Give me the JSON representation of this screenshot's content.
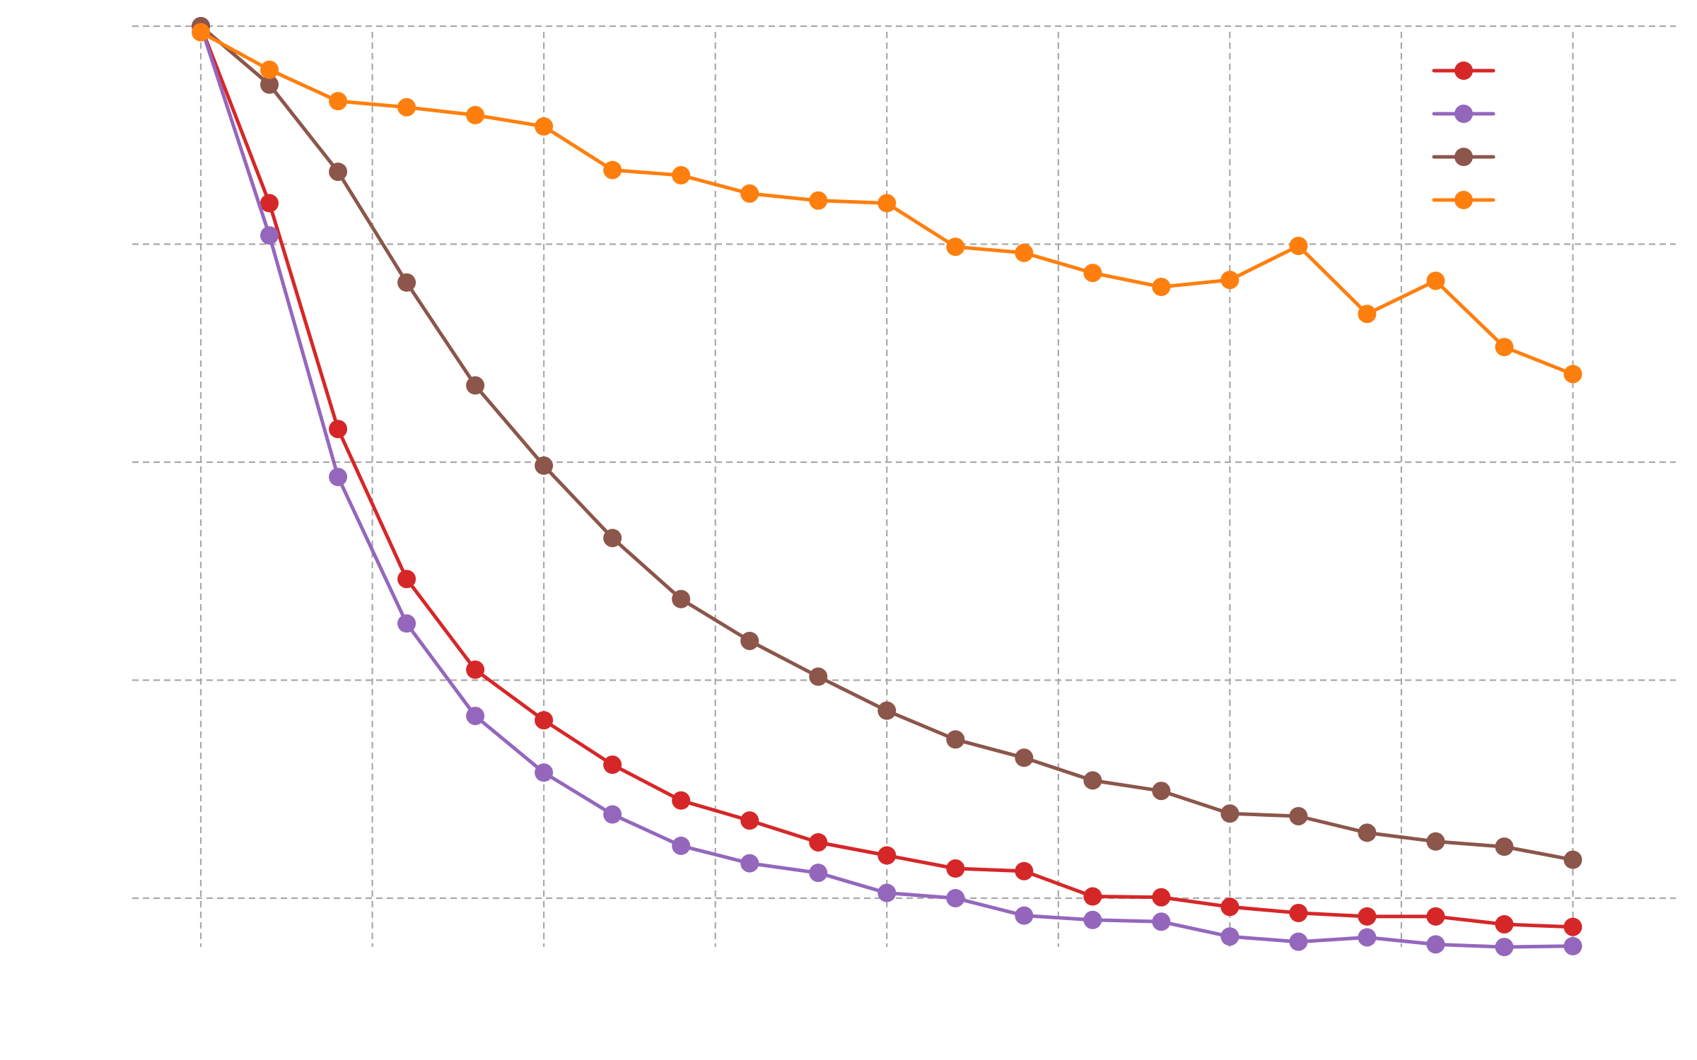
{
  "chart_data": {
    "type": "line",
    "title": "",
    "xlabel": "",
    "ylabel": "",
    "x": [
      0,
      1,
      2,
      3,
      4,
      5,
      6,
      7,
      8,
      9,
      10,
      11,
      12,
      13,
      14,
      15,
      16,
      17,
      18,
      19,
      20
    ],
    "xlim": [
      -1,
      21.5
    ],
    "ylim": [
      -0.06,
      1.03
    ],
    "xticks": [
      0,
      2.5,
      5,
      7.5,
      10,
      12.5,
      15,
      17.5,
      20
    ],
    "yticks": [
      0,
      0.25,
      0.5,
      0.75,
      1.0
    ],
    "grid": true,
    "legend_position": "top-right",
    "series": [
      {
        "color": "#d62728",
        "marker": "circle",
        "values": [
          1.0,
          0.797,
          0.538,
          0.366,
          0.262,
          0.204,
          0.153,
          0.112,
          0.089,
          0.064,
          0.049,
          0.034,
          0.031,
          0.002,
          0.001,
          -0.01,
          -0.017,
          -0.021,
          -0.021,
          -0.03,
          -0.033
        ]
      },
      {
        "color": "#9467bd",
        "marker": "circle",
        "values": [
          1.0,
          0.76,
          0.483,
          0.315,
          0.209,
          0.144,
          0.096,
          0.06,
          0.04,
          0.029,
          0.006,
          0.0,
          -0.02,
          -0.025,
          -0.027,
          -0.044,
          -0.05,
          -0.045,
          -0.053,
          -0.056,
          -0.055
        ]
      },
      {
        "color": "#8c564b",
        "marker": "circle",
        "values": [
          1.0,
          0.933,
          0.833,
          0.706,
          0.588,
          0.496,
          0.413,
          0.343,
          0.295,
          0.254,
          0.215,
          0.182,
          0.161,
          0.135,
          0.123,
          0.097,
          0.094,
          0.075,
          0.065,
          0.059,
          0.044
        ]
      },
      {
        "color": "#ff7f0e",
        "marker": "circle",
        "values": [
          0.993,
          0.95,
          0.914,
          0.907,
          0.898,
          0.885,
          0.835,
          0.829,
          0.808,
          0.8,
          0.797,
          0.747,
          0.74,
          0.717,
          0.701,
          0.709,
          0.748,
          0.67,
          0.708,
          0.632,
          0.601
        ]
      }
    ]
  }
}
